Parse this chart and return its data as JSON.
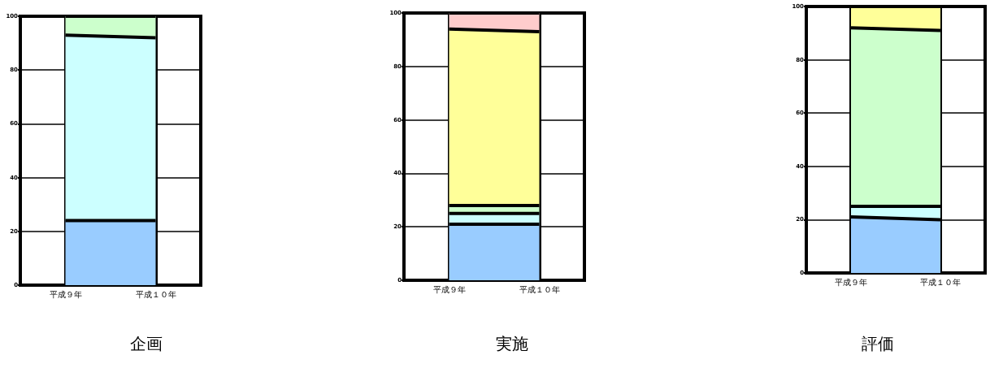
{
  "chart_data": [
    {
      "type": "area",
      "title": "企画",
      "stacked": true,
      "categories": [
        "平成９年",
        "平成１０年"
      ],
      "ylim": [
        0,
        100
      ],
      "yticks": [
        0,
        20,
        40,
        60,
        80,
        100
      ],
      "grid": true,
      "series": [
        {
          "color": "#99ccff",
          "values": [
            24,
            24
          ]
        },
        {
          "color": "#ccffff",
          "values": [
            69,
            68
          ]
        },
        {
          "color": "#ccffcc",
          "values": [
            7,
            8
          ]
        }
      ]
    },
    {
      "type": "area",
      "title": "実施",
      "stacked": true,
      "categories": [
        "平成９年",
        "平成１０年"
      ],
      "ylim": [
        0,
        100
      ],
      "yticks": [
        0,
        20,
        40,
        60,
        80,
        100
      ],
      "grid": true,
      "series": [
        {
          "color": "#99ccff",
          "values": [
            21,
            21
          ]
        },
        {
          "color": "#ccffff",
          "values": [
            4,
            4
          ]
        },
        {
          "color": "#ccffcc",
          "values": [
            3,
            3
          ]
        },
        {
          "color": "#ffff99",
          "values": [
            66,
            65
          ]
        },
        {
          "color": "#ffcccc",
          "values": [
            6,
            7
          ]
        }
      ]
    },
    {
      "type": "area",
      "title": "評価",
      "stacked": true,
      "categories": [
        "平成９年",
        "平成１０年"
      ],
      "ylim": [
        0,
        100
      ],
      "yticks": [
        0,
        20,
        40,
        60,
        80,
        100
      ],
      "grid": true,
      "series": [
        {
          "color": "#99ccff",
          "values": [
            21,
            20
          ]
        },
        {
          "color": "#ccffff",
          "values": [
            4,
            5
          ]
        },
        {
          "color": "#ccffcc",
          "values": [
            67,
            66
          ]
        },
        {
          "color": "#ffff99",
          "values": [
            8,
            9
          ]
        }
      ]
    }
  ]
}
